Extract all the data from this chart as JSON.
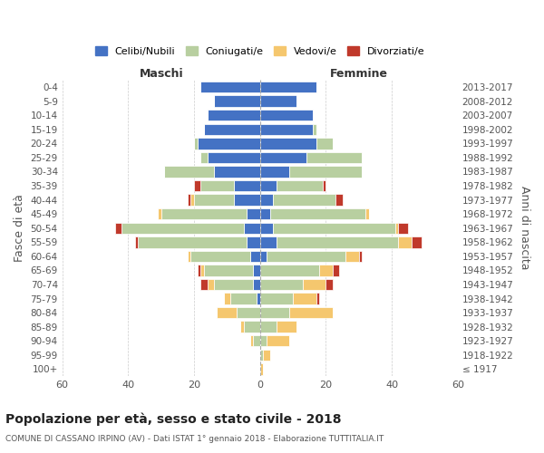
{
  "age_groups": [
    "100+",
    "95-99",
    "90-94",
    "85-89",
    "80-84",
    "75-79",
    "70-74",
    "65-69",
    "60-64",
    "55-59",
    "50-54",
    "45-49",
    "40-44",
    "35-39",
    "30-34",
    "25-29",
    "20-24",
    "15-19",
    "10-14",
    "5-9",
    "0-4"
  ],
  "birth_years": [
    "≤ 1917",
    "1918-1922",
    "1923-1927",
    "1928-1932",
    "1933-1937",
    "1938-1942",
    "1943-1947",
    "1948-1952",
    "1953-1957",
    "1958-1962",
    "1963-1967",
    "1968-1972",
    "1973-1977",
    "1978-1982",
    "1983-1987",
    "1988-1992",
    "1993-1997",
    "1998-2002",
    "2003-2007",
    "2008-2012",
    "2013-2017"
  ],
  "colors": {
    "celibi": "#4472c4",
    "coniugati": "#b8cfa0",
    "vedovi": "#f5c76e",
    "divorziati": "#c0392b",
    "background": "#ffffff",
    "grid": "#cccccc"
  },
  "maschi": {
    "celibi": [
      0,
      0,
      0,
      0,
      0,
      1,
      2,
      2,
      3,
      4,
      5,
      4,
      8,
      8,
      14,
      16,
      19,
      17,
      16,
      14,
      18
    ],
    "coniugati": [
      0,
      0,
      2,
      5,
      7,
      8,
      12,
      15,
      18,
      33,
      37,
      26,
      12,
      10,
      15,
      2,
      1,
      0,
      0,
      0,
      0
    ],
    "vedovi": [
      0,
      0,
      1,
      1,
      6,
      2,
      2,
      1,
      1,
      0,
      0,
      1,
      1,
      0,
      0,
      0,
      0,
      0,
      0,
      0,
      0
    ],
    "divorziati": [
      0,
      0,
      0,
      0,
      0,
      0,
      2,
      1,
      0,
      1,
      2,
      0,
      1,
      2,
      0,
      0,
      0,
      0,
      0,
      0,
      0
    ]
  },
  "femmine": {
    "celibi": [
      0,
      0,
      0,
      0,
      0,
      0,
      0,
      0,
      2,
      5,
      4,
      3,
      4,
      5,
      9,
      14,
      17,
      16,
      16,
      11,
      17
    ],
    "coniugati": [
      0,
      1,
      2,
      5,
      9,
      10,
      13,
      18,
      24,
      37,
      37,
      29,
      19,
      14,
      22,
      17,
      5,
      1,
      0,
      0,
      0
    ],
    "vedovi": [
      1,
      2,
      7,
      6,
      13,
      7,
      7,
      4,
      4,
      4,
      1,
      1,
      0,
      0,
      0,
      0,
      0,
      0,
      0,
      0,
      0
    ],
    "divorziati": [
      0,
      0,
      0,
      0,
      0,
      1,
      2,
      2,
      1,
      3,
      3,
      0,
      2,
      1,
      0,
      0,
      0,
      0,
      0,
      0,
      0
    ]
  },
  "xlim": 60,
  "title": "Popolazione per età, sesso e stato civile - 2018",
  "subtitle": "COMUNE DI CASSANO IRPINO (AV) - Dati ISTAT 1° gennaio 2018 - Elaborazione TUTTITALIA.IT",
  "ylabel_left": "Fasce di età",
  "ylabel_right": "Anni di nascita",
  "legend_labels": [
    "Celibi/Nubili",
    "Coniugati/e",
    "Vedovi/e",
    "Divorziati/e"
  ],
  "maschi_label": "Maschi",
  "femmine_label": "Femmine"
}
